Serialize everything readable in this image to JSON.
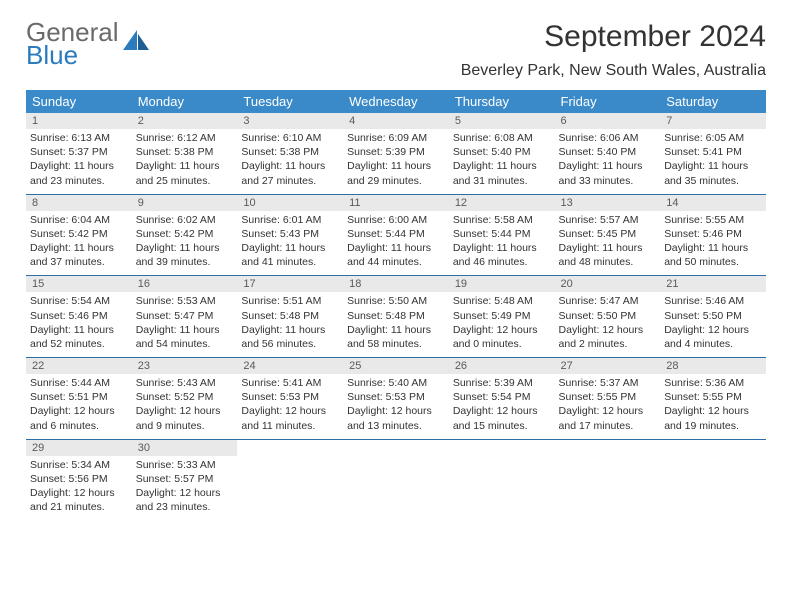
{
  "brand": {
    "word1": "General",
    "word2": "Blue"
  },
  "title": "September 2024",
  "location": "Beverley Park, New South Wales, Australia",
  "colors": {
    "headerBlue": "#3a8ac9",
    "ruleBlue": "#2f6ea3",
    "dayBg": "#e9e9e9",
    "text": "#333333",
    "logoGray": "#6a6a6a",
    "logoBlue": "#2b7bbf"
  },
  "weekdays": [
    "Sunday",
    "Monday",
    "Tuesday",
    "Wednesday",
    "Thursday",
    "Friday",
    "Saturday"
  ],
  "weeks": [
    [
      {
        "n": "1",
        "sr": "Sunrise: 6:13 AM",
        "ss": "Sunset: 5:37 PM",
        "d1": "Daylight: 11 hours",
        "d2": "and 23 minutes."
      },
      {
        "n": "2",
        "sr": "Sunrise: 6:12 AM",
        "ss": "Sunset: 5:38 PM",
        "d1": "Daylight: 11 hours",
        "d2": "and 25 minutes."
      },
      {
        "n": "3",
        "sr": "Sunrise: 6:10 AM",
        "ss": "Sunset: 5:38 PM",
        "d1": "Daylight: 11 hours",
        "d2": "and 27 minutes."
      },
      {
        "n": "4",
        "sr": "Sunrise: 6:09 AM",
        "ss": "Sunset: 5:39 PM",
        "d1": "Daylight: 11 hours",
        "d2": "and 29 minutes."
      },
      {
        "n": "5",
        "sr": "Sunrise: 6:08 AM",
        "ss": "Sunset: 5:40 PM",
        "d1": "Daylight: 11 hours",
        "d2": "and 31 minutes."
      },
      {
        "n": "6",
        "sr": "Sunrise: 6:06 AM",
        "ss": "Sunset: 5:40 PM",
        "d1": "Daylight: 11 hours",
        "d2": "and 33 minutes."
      },
      {
        "n": "7",
        "sr": "Sunrise: 6:05 AM",
        "ss": "Sunset: 5:41 PM",
        "d1": "Daylight: 11 hours",
        "d2": "and 35 minutes."
      }
    ],
    [
      {
        "n": "8",
        "sr": "Sunrise: 6:04 AM",
        "ss": "Sunset: 5:42 PM",
        "d1": "Daylight: 11 hours",
        "d2": "and 37 minutes."
      },
      {
        "n": "9",
        "sr": "Sunrise: 6:02 AM",
        "ss": "Sunset: 5:42 PM",
        "d1": "Daylight: 11 hours",
        "d2": "and 39 minutes."
      },
      {
        "n": "10",
        "sr": "Sunrise: 6:01 AM",
        "ss": "Sunset: 5:43 PM",
        "d1": "Daylight: 11 hours",
        "d2": "and 41 minutes."
      },
      {
        "n": "11",
        "sr": "Sunrise: 6:00 AM",
        "ss": "Sunset: 5:44 PM",
        "d1": "Daylight: 11 hours",
        "d2": "and 44 minutes."
      },
      {
        "n": "12",
        "sr": "Sunrise: 5:58 AM",
        "ss": "Sunset: 5:44 PM",
        "d1": "Daylight: 11 hours",
        "d2": "and 46 minutes."
      },
      {
        "n": "13",
        "sr": "Sunrise: 5:57 AM",
        "ss": "Sunset: 5:45 PM",
        "d1": "Daylight: 11 hours",
        "d2": "and 48 minutes."
      },
      {
        "n": "14",
        "sr": "Sunrise: 5:55 AM",
        "ss": "Sunset: 5:46 PM",
        "d1": "Daylight: 11 hours",
        "d2": "and 50 minutes."
      }
    ],
    [
      {
        "n": "15",
        "sr": "Sunrise: 5:54 AM",
        "ss": "Sunset: 5:46 PM",
        "d1": "Daylight: 11 hours",
        "d2": "and 52 minutes."
      },
      {
        "n": "16",
        "sr": "Sunrise: 5:53 AM",
        "ss": "Sunset: 5:47 PM",
        "d1": "Daylight: 11 hours",
        "d2": "and 54 minutes."
      },
      {
        "n": "17",
        "sr": "Sunrise: 5:51 AM",
        "ss": "Sunset: 5:48 PM",
        "d1": "Daylight: 11 hours",
        "d2": "and 56 minutes."
      },
      {
        "n": "18",
        "sr": "Sunrise: 5:50 AM",
        "ss": "Sunset: 5:48 PM",
        "d1": "Daylight: 11 hours",
        "d2": "and 58 minutes."
      },
      {
        "n": "19",
        "sr": "Sunrise: 5:48 AM",
        "ss": "Sunset: 5:49 PM",
        "d1": "Daylight: 12 hours",
        "d2": "and 0 minutes."
      },
      {
        "n": "20",
        "sr": "Sunrise: 5:47 AM",
        "ss": "Sunset: 5:50 PM",
        "d1": "Daylight: 12 hours",
        "d2": "and 2 minutes."
      },
      {
        "n": "21",
        "sr": "Sunrise: 5:46 AM",
        "ss": "Sunset: 5:50 PM",
        "d1": "Daylight: 12 hours",
        "d2": "and 4 minutes."
      }
    ],
    [
      {
        "n": "22",
        "sr": "Sunrise: 5:44 AM",
        "ss": "Sunset: 5:51 PM",
        "d1": "Daylight: 12 hours",
        "d2": "and 6 minutes."
      },
      {
        "n": "23",
        "sr": "Sunrise: 5:43 AM",
        "ss": "Sunset: 5:52 PM",
        "d1": "Daylight: 12 hours",
        "d2": "and 9 minutes."
      },
      {
        "n": "24",
        "sr": "Sunrise: 5:41 AM",
        "ss": "Sunset: 5:53 PM",
        "d1": "Daylight: 12 hours",
        "d2": "and 11 minutes."
      },
      {
        "n": "25",
        "sr": "Sunrise: 5:40 AM",
        "ss": "Sunset: 5:53 PM",
        "d1": "Daylight: 12 hours",
        "d2": "and 13 minutes."
      },
      {
        "n": "26",
        "sr": "Sunrise: 5:39 AM",
        "ss": "Sunset: 5:54 PM",
        "d1": "Daylight: 12 hours",
        "d2": "and 15 minutes."
      },
      {
        "n": "27",
        "sr": "Sunrise: 5:37 AM",
        "ss": "Sunset: 5:55 PM",
        "d1": "Daylight: 12 hours",
        "d2": "and 17 minutes."
      },
      {
        "n": "28",
        "sr": "Sunrise: 5:36 AM",
        "ss": "Sunset: 5:55 PM",
        "d1": "Daylight: 12 hours",
        "d2": "and 19 minutes."
      }
    ],
    [
      {
        "n": "29",
        "sr": "Sunrise: 5:34 AM",
        "ss": "Sunset: 5:56 PM",
        "d1": "Daylight: 12 hours",
        "d2": "and 21 minutes."
      },
      {
        "n": "30",
        "sr": "Sunrise: 5:33 AM",
        "ss": "Sunset: 5:57 PM",
        "d1": "Daylight: 12 hours",
        "d2": "and 23 minutes."
      },
      null,
      null,
      null,
      null,
      null
    ]
  ]
}
